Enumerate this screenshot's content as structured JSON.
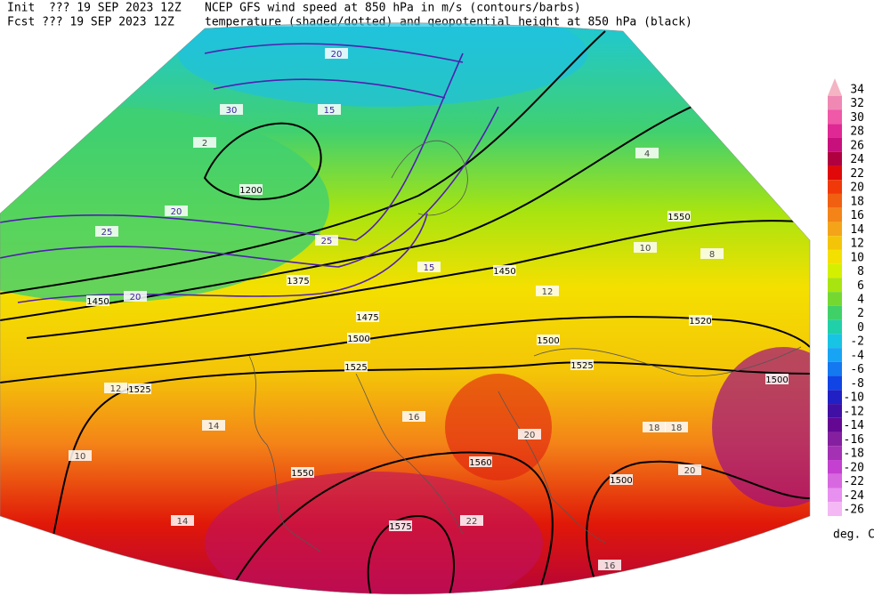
{
  "header": {
    "init": "Init  ??? 19 SEP 2023 12Z",
    "fcst": "Fcst ??? 19 SEP 2023 12Z",
    "title1": "NCEP GFS wind speed at 850 hPa in m/s (contours/barbs)",
    "title2": "temperature (shaded/dotted) and geopotential height at 850 hPa (black)"
  },
  "colorbar": {
    "ticks": [
      34,
      32,
      30,
      28,
      26,
      24,
      22,
      20,
      18,
      16,
      14,
      12,
      10,
      8,
      6,
      4,
      2,
      0,
      -2,
      -4,
      -6,
      -8,
      -10,
      -12,
      -14,
      -16,
      -18,
      -20,
      -22,
      -24,
      -26
    ],
    "colors": [
      "#f4b4c4",
      "#f088b4",
      "#f058a8",
      "#e02894",
      "#c8107c",
      "#b00040",
      "#e00808",
      "#f03808",
      "#f06010",
      "#f48418",
      "#f4a418",
      "#f4c408",
      "#f4e000",
      "#d4f000",
      "#a8e410",
      "#74d830",
      "#40d068",
      "#20d0a8",
      "#18c4e4",
      "#18a4f4",
      "#1478f0",
      "#1044e4",
      "#2020c4",
      "#4010a4",
      "#640894",
      "#8420a0",
      "#a430b4",
      "#c440d0",
      "#d868e0",
      "#e890f0",
      "#f4b8f4"
    ],
    "unit": "deg. C"
  },
  "map": {
    "height_labels": [
      "1550",
      "1450",
      "1500",
      "1525",
      "1525",
      "1500",
      "1475",
      "1525",
      "1550",
      "1560",
      "1575",
      "1500",
      "1500",
      "1520",
      "1200",
      "1450",
      "1375"
    ],
    "temp_labels": [
      10,
      12,
      14,
      16,
      18,
      20,
      22,
      12,
      10,
      8,
      16,
      14,
      18,
      20,
      2,
      4
    ],
    "wind_labels": [
      20,
      25,
      30,
      15,
      20,
      25,
      15,
      20
    ]
  }
}
